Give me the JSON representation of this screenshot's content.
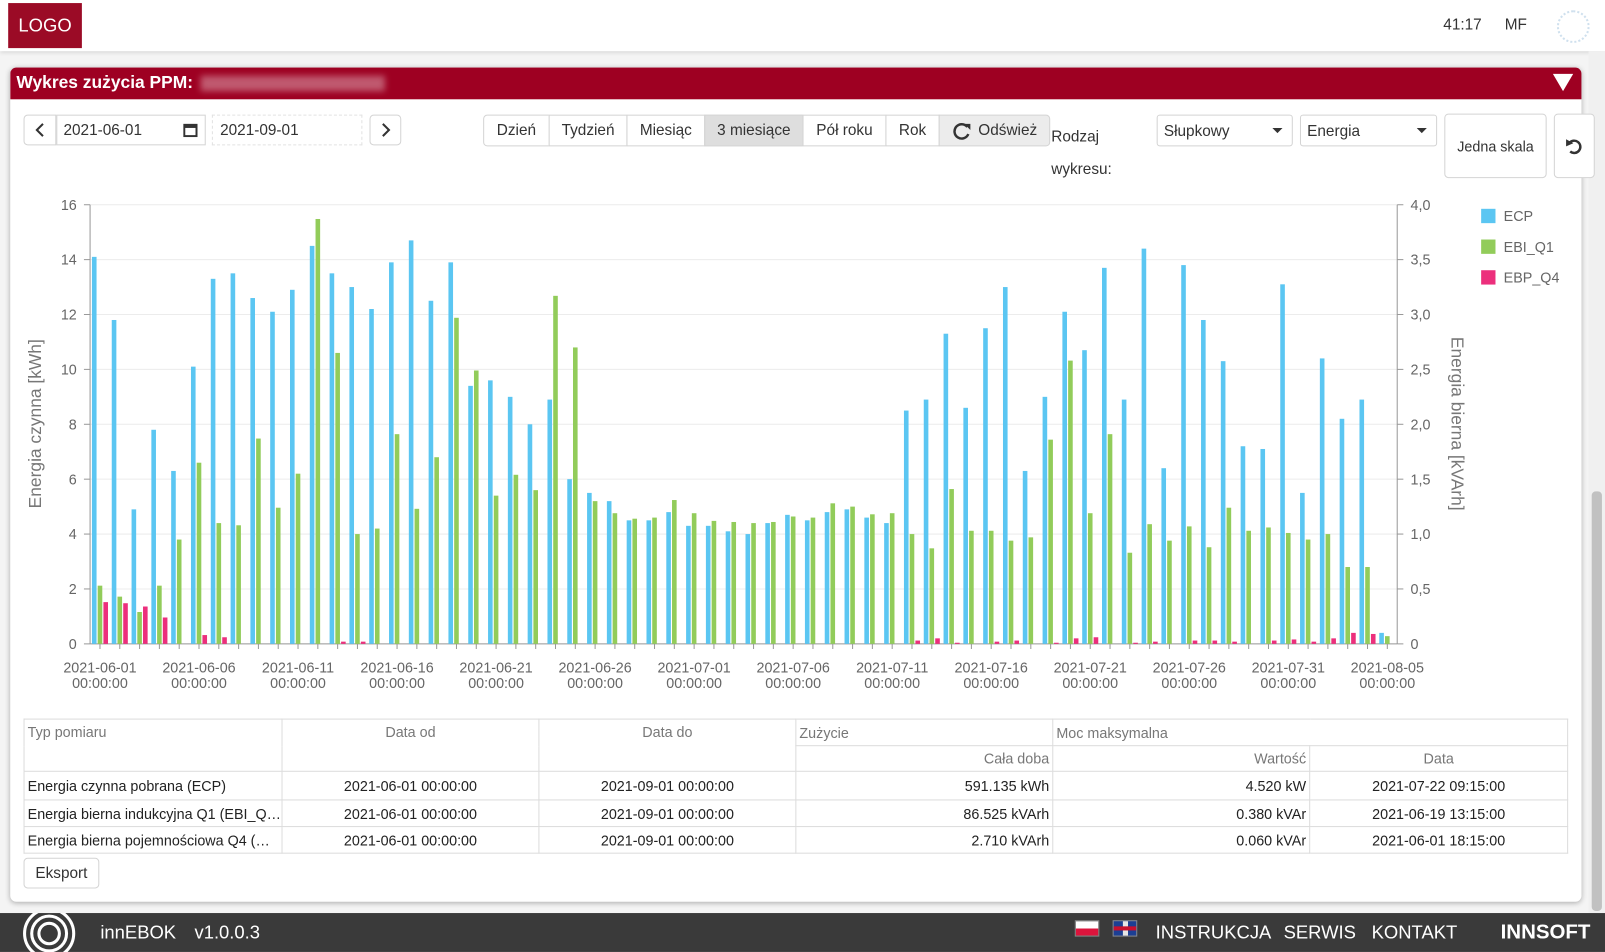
{
  "header": {
    "logo": "LOGO",
    "time": "41:17",
    "user": "MF"
  },
  "panel": {
    "title": "Wykres zużycia PPM:"
  },
  "controls": {
    "date_from": "2021-06-01",
    "date_to": "2021-09-01",
    "periods": [
      "Dzień",
      "Tydzień",
      "Miesiąc",
      "3 miesiące",
      "Pół roku",
      "Rok"
    ],
    "refresh": "Odśwież",
    "chart_type_label": "Rodzaj wykresu:",
    "chart_type": "Słupkowy",
    "measure": "Energia",
    "scale": "Jedna skala"
  },
  "chart_data": {
    "type": "bar",
    "ylabel": "Energia czynna [kWh]",
    "y2label": "Energia bierna [kVArh]",
    "categories": [
      "2021-06-01 00:00:00",
      null,
      null,
      null,
      null,
      "2021-06-06 00:00:00",
      null,
      null,
      null,
      null,
      "2021-06-11 00:00:00",
      null,
      null,
      null,
      null,
      "2021-06-16 00:00:00",
      null,
      null,
      null,
      null,
      "2021-06-21 00:00:00",
      null,
      null,
      null,
      null,
      "2021-06-26 00:00:00",
      null,
      null,
      null,
      null,
      "2021-07-01 00:00:00",
      null,
      null,
      null,
      null,
      "2021-07-06 00:00:00",
      null,
      null,
      null,
      null,
      "2021-07-11 00:00:00",
      null,
      null,
      null,
      null,
      "2021-07-16 00:00:00",
      null,
      null,
      null,
      null,
      "2021-07-21 00:00:00",
      null,
      null,
      null,
      null,
      "2021-07-26 00:00:00",
      null,
      null,
      null,
      null,
      "2021-07-31 00:00:00",
      null,
      null,
      null,
      null,
      "2021-08-05 00:00:00"
    ],
    "series": [
      {
        "name": "ECP",
        "color": "#5bc6f2",
        "values": [
          14.1,
          11.8,
          4.9,
          7.8,
          6.3,
          10.1,
          13.3,
          13.5,
          12.6,
          12.1,
          12.9,
          14.5,
          13.5,
          13.0,
          12.2,
          13.9,
          14.7,
          12.5,
          13.9,
          9.4,
          9.6,
          9.0,
          8.0,
          8.9,
          6.0,
          5.5,
          5.2,
          4.5,
          4.5,
          4.8,
          4.3,
          4.3,
          4.1,
          4.0,
          4.4,
          4.7,
          4.5,
          4.8,
          4.9,
          4.6,
          4.4,
          8.5,
          8.9,
          11.3,
          8.6,
          11.5,
          13.0,
          6.3,
          9.0,
          12.1,
          10.7,
          13.7,
          8.9,
          14.4,
          6.4,
          13.8,
          11.8,
          10.3,
          7.2,
          7.1,
          13.1,
          5.5,
          10.4,
          8.2,
          8.9,
          0.4
        ]
      },
      {
        "name": "EBI_Q1",
        "color": "#92cc5a",
        "axis": "y2",
        "values": [
          0.53,
          0.43,
          0.29,
          0.53,
          0.95,
          1.65,
          1.1,
          1.08,
          1.87,
          1.24,
          1.55,
          3.87,
          2.65,
          1.0,
          1.05,
          1.91,
          1.23,
          1.7,
          2.97,
          2.49,
          1.35,
          1.54,
          1.4,
          3.17,
          2.7,
          1.3,
          1.19,
          1.14,
          1.15,
          1.31,
          1.19,
          1.12,
          1.11,
          1.1,
          1.11,
          1.16,
          1.15,
          1.28,
          1.25,
          1.18,
          1.19,
          1.0,
          0.87,
          1.41,
          1.03,
          1.03,
          0.94,
          0.97,
          1.86,
          2.58,
          1.19,
          1.91,
          0.83,
          1.09,
          0.94,
          1.07,
          0.88,
          1.24,
          1.03,
          1.06,
          1.01,
          0.95,
          1.0,
          0.7,
          0.7,
          0.07
        ]
      },
      {
        "name": "EBP_Q4",
        "color": "#ec2f7c",
        "axis": "y2",
        "values": [
          0.38,
          0.37,
          0.34,
          0.24,
          0,
          0.08,
          0.06,
          0,
          0,
          0,
          0,
          0,
          0.02,
          0.02,
          0,
          0,
          0,
          0,
          0,
          0,
          0,
          0,
          0,
          0,
          0,
          0,
          0,
          0,
          0,
          0,
          0,
          0,
          0,
          0,
          0,
          0,
          0,
          0,
          0,
          0,
          0,
          0.03,
          0.05,
          0.01,
          0,
          0.02,
          0.03,
          0,
          0.01,
          0.05,
          0.06,
          0,
          0.01,
          0.02,
          0,
          0.03,
          0.03,
          0.02,
          0,
          0.03,
          0.04,
          0.02,
          0.05,
          0.1,
          0.09,
          0
        ]
      }
    ],
    "ylim": [
      0,
      16
    ],
    "yticks": [
      0,
      2,
      4,
      6,
      8,
      10,
      12,
      14,
      16
    ],
    "y2lim": [
      0,
      4
    ],
    "y2ticks": [
      0,
      {
        "value": 0.5,
        "label": "0,5"
      },
      {
        "value": 1,
        "label": "1,0"
      },
      {
        "value": 1.5,
        "label": "1,5"
      },
      {
        "value": 2,
        "label": "2,0"
      },
      {
        "value": 2.5,
        "label": "2,5"
      },
      {
        "value": 3,
        "label": "3,0"
      },
      {
        "value": 3.5,
        "label": "3,5"
      },
      {
        "value": 4,
        "label": "4,0"
      }
    ],
    "grid": true,
    "legend": "right"
  },
  "table": {
    "headers": [
      "Typ pomiaru",
      "Data od",
      "Data do",
      "Zużycie",
      "Moc maksymalna"
    ],
    "subheaders": [
      "Cała doba",
      "Wartość",
      "Data"
    ],
    "rows": [
      [
        "Energia czynna pobrana (ECP)",
        "2021-06-01 00:00:00",
        "2021-09-01 00:00:00",
        "591.135 kWh",
        "4.520 kW",
        "2021-07-22 09:15:00"
      ],
      [
        "Energia bierna indukcyjna Q1 (EBI_Q…",
        "2021-06-01 00:00:00",
        "2021-09-01 00:00:00",
        "86.525 kVArh",
        "0.380 kVAr",
        "2021-06-19 13:15:00"
      ],
      [
        "Energia bierna pojemnościowa Q4 (…",
        "2021-06-01 00:00:00",
        "2021-09-01 00:00:00",
        "2.710 kVArh",
        "0.060 kVAr",
        "2021-06-01 18:15:00"
      ]
    ]
  },
  "export": "Eksport",
  "footer": {
    "app": "innEBOK",
    "version": "v1.0.0.3",
    "links": [
      "INSTRUKCJA",
      "SERWIS",
      "KONTAKT"
    ],
    "brand": "INNSOFT"
  }
}
